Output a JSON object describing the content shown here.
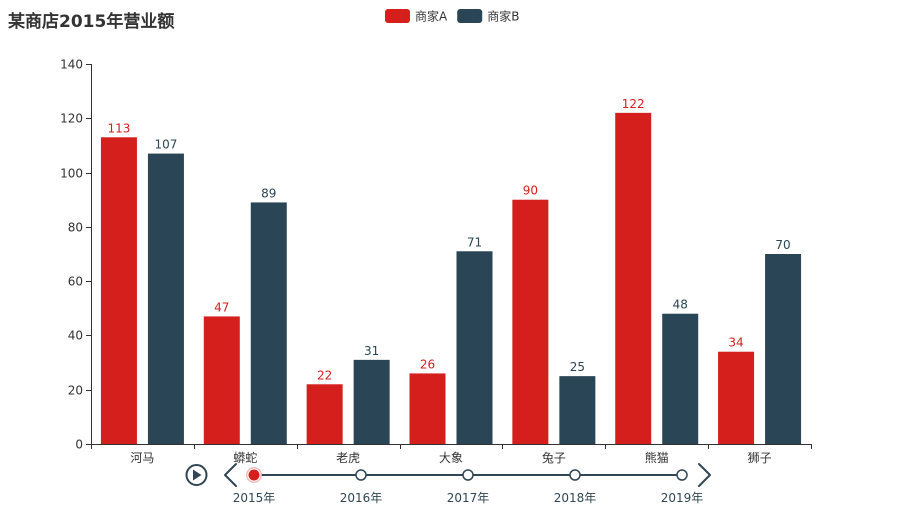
{
  "chart_data": {
    "type": "bar",
    "title": "某商店2015年营业额",
    "categories": [
      "河马",
      "蟒蛇",
      "老虎",
      "大象",
      "兔子",
      "熊猫",
      "狮子"
    ],
    "series": [
      {
        "name": "商家A",
        "color": "#d41f1c",
        "values": [
          113,
          47,
          22,
          26,
          90,
          122,
          34
        ]
      },
      {
        "name": "商家B",
        "color": "#2a4556",
        "values": [
          107,
          89,
          31,
          71,
          25,
          48,
          70
        ]
      }
    ],
    "yticks": [
      "0",
      "20",
      "40",
      "60",
      "80",
      "100",
      "120",
      "140"
    ],
    "ylim": [
      0,
      140
    ],
    "grid": false,
    "legend_position": "top-center",
    "timeline": {
      "items": [
        "2015年",
        "2016年",
        "2017年",
        "2018年",
        "2019年"
      ],
      "current_index": 0,
      "colors": {
        "line": "#304654",
        "active": "#d41f1c",
        "active_ring": "#f5b5b2"
      },
      "icons": {
        "play": "play-icon",
        "prev": "chevron-left-icon",
        "next": "chevron-right-icon"
      }
    }
  }
}
